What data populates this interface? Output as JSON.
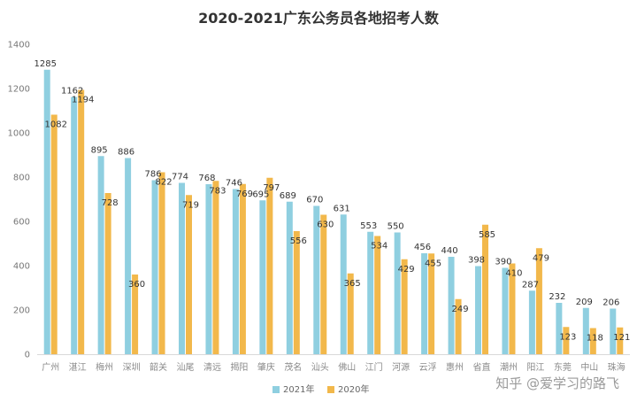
{
  "chart_data": {
    "type": "bar",
    "title": "2020-2021广东公务员各地招考人数",
    "categories": [
      "广州",
      "湛江",
      "梅州",
      "深圳",
      "韶关",
      "汕尾",
      "清远",
      "揭阳",
      "肇庆",
      "茂名",
      "汕头",
      "佛山",
      "江门",
      "河源",
      "云浮",
      "惠州",
      "省直",
      "潮州",
      "阳江",
      "东莞",
      "中山",
      "珠海"
    ],
    "series": [
      {
        "name": "2021年",
        "color": "#8fcfe0",
        "values": [
          1285,
          1162,
          895,
          886,
          786,
          774,
          768,
          746,
          695,
          689,
          670,
          631,
          553,
          550,
          456,
          440,
          398,
          390,
          287,
          232,
          209,
          206
        ]
      },
      {
        "name": "2020年",
        "color": "#f2b84b",
        "values": [
          1082,
          1194,
          728,
          360,
          822,
          719,
          783,
          769,
          797,
          556,
          630,
          365,
          534,
          429,
          455,
          249,
          585,
          410,
          479,
          123,
          118,
          121
        ]
      }
    ],
    "ylim": [
      0,
      1400
    ],
    "yticks": [
      0,
      200,
      400,
      600,
      800,
      1000,
      1200,
      1400
    ],
    "grid": false,
    "legend_position": "bottom"
  },
  "watermark": "知乎 @爱学习的路飞"
}
